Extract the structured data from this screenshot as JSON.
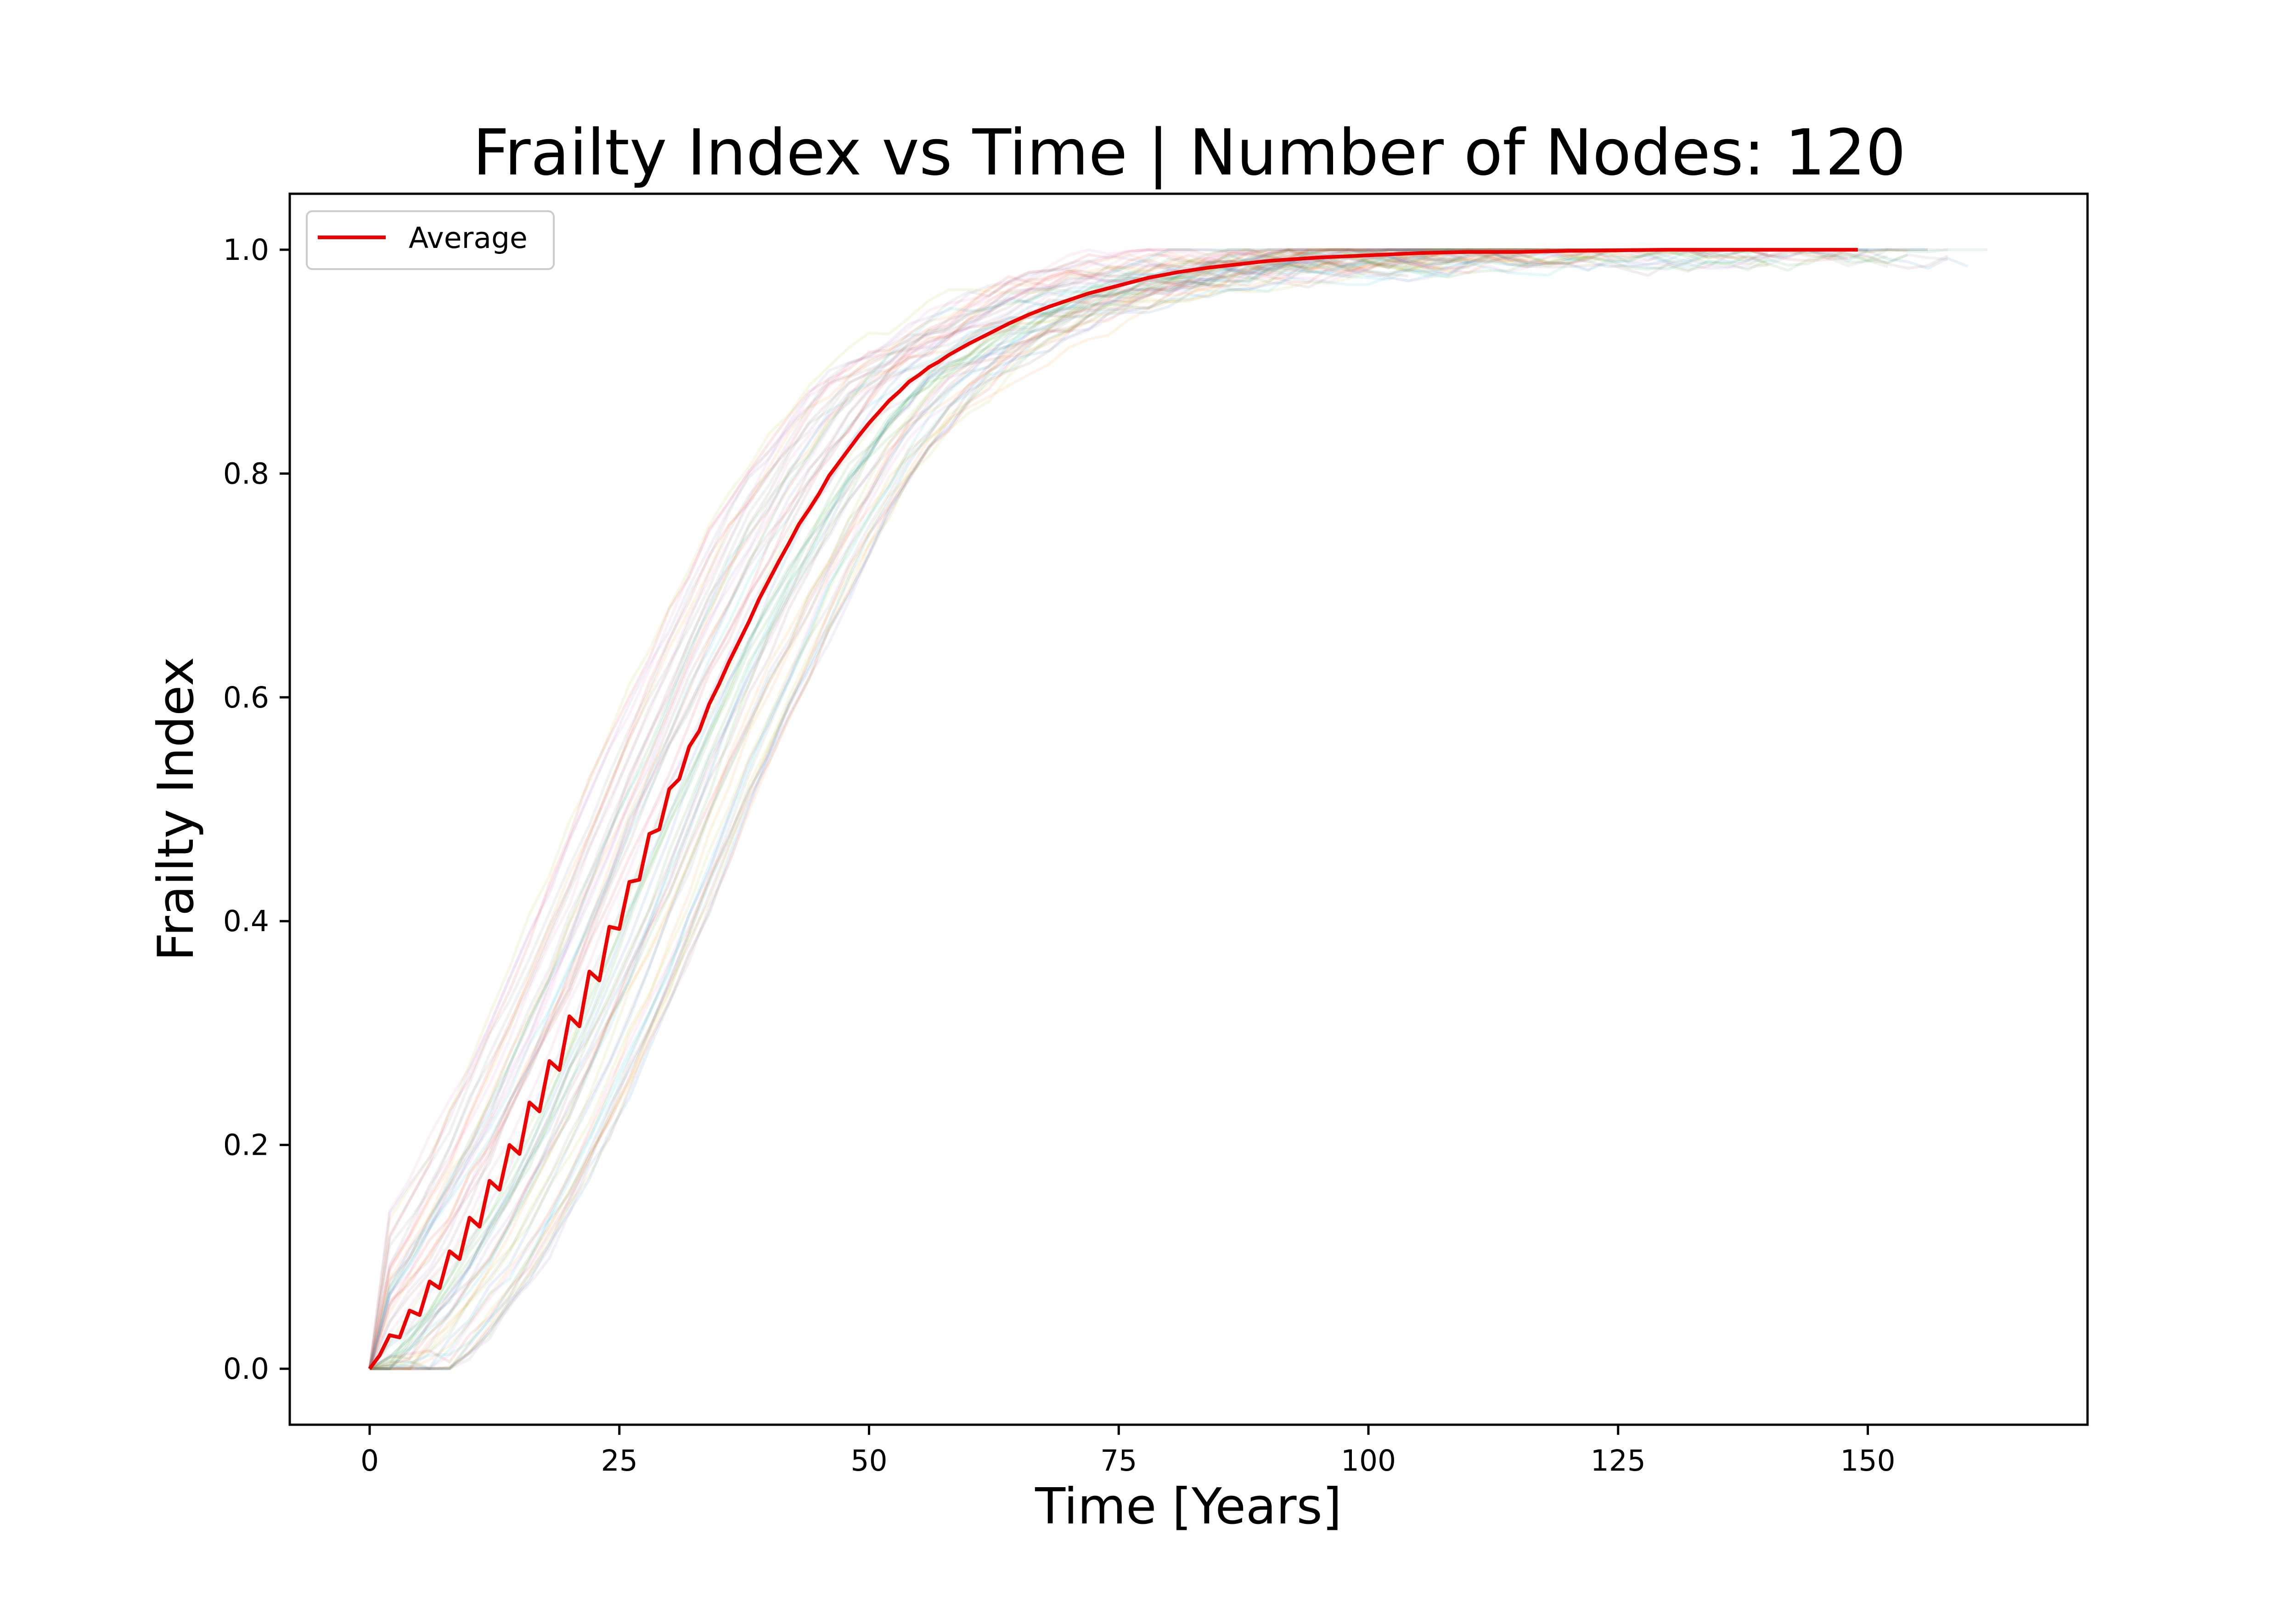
{
  "chart_data": {
    "type": "line",
    "title": "Frailty Index vs Time | Number of Nodes: 120",
    "xlabel": "Time [Years]",
    "ylabel": "Frailty Index",
    "xlim": [
      -8,
      172
    ],
    "ylim": [
      -0.05,
      1.05
    ],
    "xticks": [
      0,
      25,
      50,
      75,
      100,
      125,
      150
    ],
    "xtick_labels": [
      "0",
      "25",
      "50",
      "75",
      "100",
      "125",
      "150"
    ],
    "yticks": [
      0.0,
      0.2,
      0.4,
      0.6,
      0.8,
      1.0
    ],
    "ytick_labels": [
      "0.0",
      "0.2",
      "0.4",
      "0.6",
      "0.8",
      "1.0"
    ],
    "grid": false,
    "legend": {
      "position": "upper-left",
      "entries": [
        "Average"
      ]
    },
    "series": [
      {
        "name": "Average",
        "color": "#ee0000",
        "x": [
          0,
          1,
          2,
          3,
          4,
          5,
          6,
          7,
          8,
          9,
          10,
          11,
          12,
          13,
          14,
          15,
          16,
          17,
          18,
          19,
          20,
          21,
          22,
          23,
          24,
          25,
          26,
          27,
          28,
          29,
          30,
          31,
          32,
          33,
          34,
          35,
          36,
          37,
          38,
          39,
          40,
          41,
          42,
          43,
          44,
          45,
          46,
          47,
          48,
          49,
          50,
          51,
          52,
          53,
          54,
          55,
          56,
          57,
          58,
          59,
          60,
          62,
          64,
          66,
          68,
          70,
          72,
          75,
          78,
          81,
          84,
          87,
          90,
          95,
          100,
          105,
          110,
          115,
          120,
          130,
          140,
          149
        ],
        "y": [
          0.0,
          0.012,
          0.03,
          0.028,
          0.052,
          0.048,
          0.078,
          0.072,
          0.105,
          0.098,
          0.135,
          0.127,
          0.168,
          0.16,
          0.2,
          0.192,
          0.238,
          0.23,
          0.275,
          0.267,
          0.315,
          0.306,
          0.355,
          0.347,
          0.395,
          0.393,
          0.435,
          0.437,
          0.478,
          0.482,
          0.518,
          0.527,
          0.556,
          0.57,
          0.594,
          0.612,
          0.632,
          0.65,
          0.668,
          0.688,
          0.705,
          0.722,
          0.738,
          0.755,
          0.768,
          0.782,
          0.798,
          0.81,
          0.822,
          0.834,
          0.845,
          0.855,
          0.865,
          0.873,
          0.882,
          0.888,
          0.895,
          0.9,
          0.906,
          0.911,
          0.916,
          0.925,
          0.934,
          0.942,
          0.949,
          0.955,
          0.961,
          0.968,
          0.975,
          0.98,
          0.984,
          0.987,
          0.99,
          0.993,
          0.995,
          0.997,
          0.998,
          0.998,
          0.999,
          1.0,
          1.0,
          1.0
        ]
      }
    ],
    "background_runs": {
      "count": 60,
      "description_colors": [
        "#1f77b4",
        "#ff7f0e",
        "#2ca02c",
        "#d62728",
        "#9467bd",
        "#8c564b",
        "#e377c2",
        "#7f7f7f",
        "#bcbd22",
        "#17becf"
      ],
      "opacity": 0.1,
      "x_max": 164
    }
  }
}
